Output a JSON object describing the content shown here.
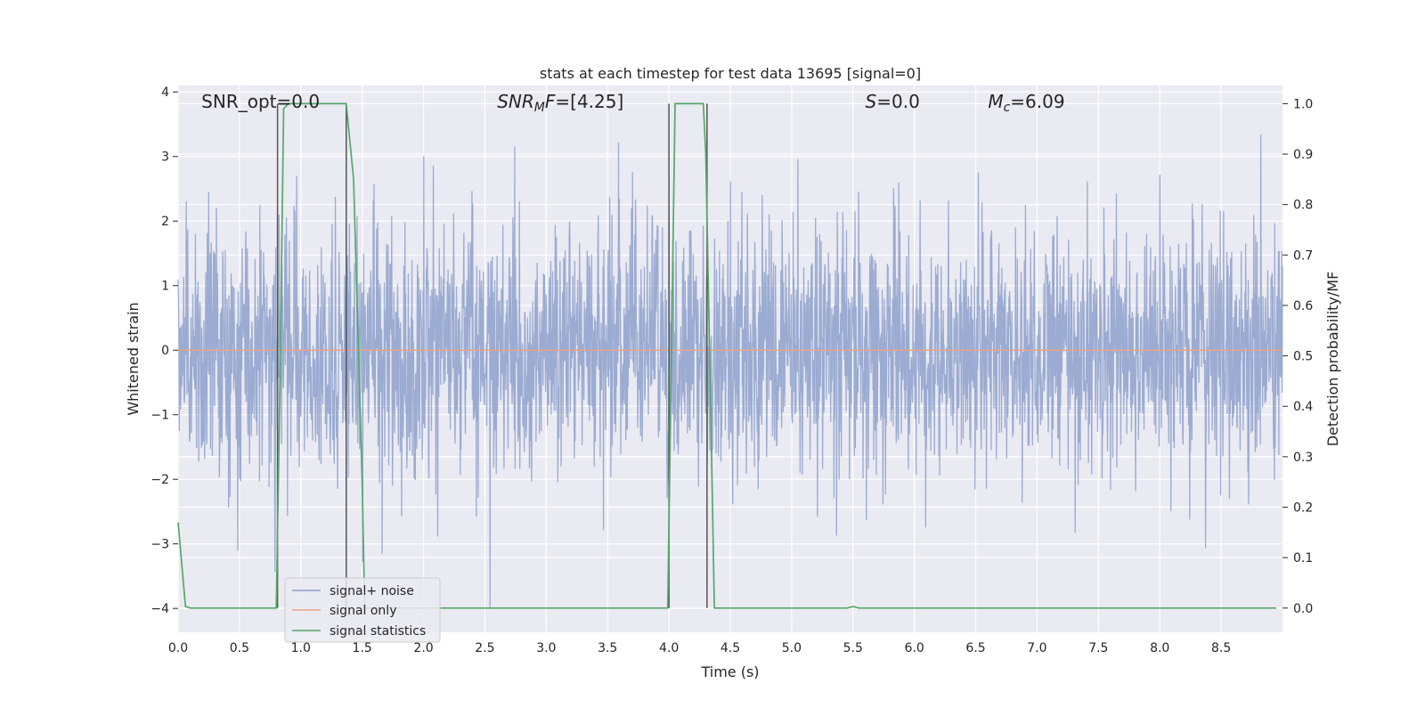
{
  "chart_data": {
    "type": "line",
    "title": "stats at each timestep for test data 13695 [signal=0]",
    "xlabel": "Time (s)",
    "ylabel_left": "Whitened strain",
    "ylabel_right": "Detection probability/MF",
    "xlim": [
      0.0,
      9.0
    ],
    "ylim_left": [
      -4.37,
      4.1
    ],
    "ylim_right": [
      -0.048,
      1.036
    ],
    "x_ticks": [
      "0.0",
      "0.5",
      "1.0",
      "1.5",
      "2.0",
      "2.5",
      "3.0",
      "3.5",
      "4.0",
      "4.5",
      "5.0",
      "5.5",
      "6.0",
      "6.5",
      "7.0",
      "7.5",
      "8.0",
      "8.5"
    ],
    "y_ticks_left": [
      "−4",
      "−3",
      "−2",
      "−1",
      "0",
      "1",
      "2",
      "3",
      "4"
    ],
    "y_ticks_right": [
      "0.0",
      "0.1",
      "0.2",
      "0.3",
      "0.4",
      "0.5",
      "0.6",
      "0.7",
      "0.8",
      "0.9",
      "1.0"
    ],
    "grid": true,
    "legend_position": "lower-left",
    "series": [
      {
        "name": "signal+ noise",
        "axis": "left",
        "color": "#8da0cb",
        "description": "whitened strain noise, roughly -2 to 2 with spikes to about ±3.9",
        "min": -4.0,
        "max": 3.9
      },
      {
        "name": "signal only",
        "axis": "left",
        "color": "#e8a388",
        "x": [
          0.0,
          9.0
        ],
        "values": [
          0.0,
          0.0
        ]
      },
      {
        "name": "signal statistics",
        "axis": "right",
        "color": "#55a868",
        "x": [
          0.0,
          0.06,
          0.1,
          0.15,
          0.8,
          0.83,
          0.86,
          0.9,
          0.95,
          1.0,
          1.37,
          1.43,
          1.5,
          1.52,
          2.0,
          3.99,
          4.02,
          4.05,
          4.28,
          4.3,
          4.34,
          4.37,
          4.4,
          5.45,
          5.5,
          5.55,
          6.0,
          8.95
        ],
        "values": [
          0.17,
          0.003,
          0.0,
          0.0,
          0.0,
          0.45,
          0.99,
          1.0,
          1.0,
          1.0,
          1.0,
          0.85,
          0.25,
          0.0,
          0.0,
          0.0,
          0.5,
          1.0,
          1.0,
          0.9,
          0.4,
          0.0,
          0.0,
          0.0,
          0.003,
          0.0,
          0.0,
          0.0
        ]
      }
    ],
    "vertical_lines": [
      {
        "x": 0.81,
        "color": "#555555"
      },
      {
        "x": 1.37,
        "color": "#555555"
      },
      {
        "x": 4.0,
        "color": "#555555"
      },
      {
        "x": 4.31,
        "color": "#555555"
      }
    ],
    "annotations": [
      {
        "text_parts": [
          {
            "t": "SNR_opt=0.0",
            "italic": false
          }
        ],
        "x": 0.19
      },
      {
        "text_parts": [
          {
            "t": "SNR",
            "italic": true
          },
          {
            "t": "M",
            "italic": true,
            "sub": true
          },
          {
            "t": "F",
            "italic": true
          },
          {
            "t": "=[4.25]",
            "italic": false
          }
        ],
        "x": 2.6
      },
      {
        "text_parts": [
          {
            "t": "S",
            "italic": true
          },
          {
            "t": "=0.0",
            "italic": false
          }
        ],
        "x": 5.6
      },
      {
        "text_parts": [
          {
            "t": "M",
            "italic": true
          },
          {
            "t": "c",
            "italic": true,
            "sub": true
          },
          {
            "t": "=6.09",
            "italic": false
          }
        ],
        "x": 6.6
      }
    ]
  }
}
